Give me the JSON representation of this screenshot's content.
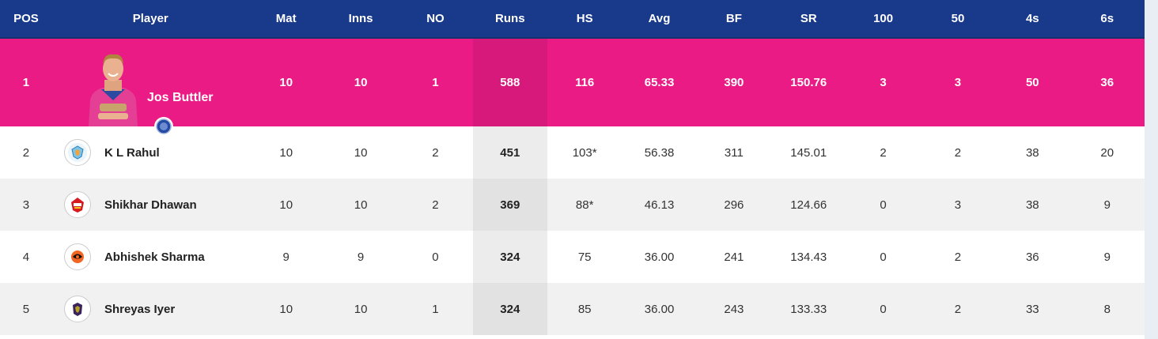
{
  "columns": {
    "pos": "POS",
    "player": "Player",
    "mat": "Mat",
    "inns": "Inns",
    "no": "NO",
    "runs": "Runs",
    "hs": "HS",
    "avg": "Avg",
    "bf": "BF",
    "sr": "SR",
    "hundreds": "100",
    "fifties": "50",
    "fours": "4s",
    "sixes": "6s"
  },
  "rows": [
    {
      "pos": "1",
      "player": "Jos Buttler",
      "mat": "10",
      "inns": "10",
      "no": "1",
      "runs": "588",
      "hs": "116",
      "avg": "65.33",
      "bf": "390",
      "sr": "150.76",
      "hundreds": "3",
      "fifties": "3",
      "fours": "50",
      "sixes": "36",
      "team_icon": "rajasthan-royals-logo-icon"
    },
    {
      "pos": "2",
      "player": "K L Rahul",
      "mat": "10",
      "inns": "10",
      "no": "2",
      "runs": "451",
      "hs": "103*",
      "avg": "56.38",
      "bf": "311",
      "sr": "145.01",
      "hundreds": "2",
      "fifties": "2",
      "fours": "38",
      "sixes": "20",
      "team_icon": "lucknow-super-giants-logo-icon"
    },
    {
      "pos": "3",
      "player": "Shikhar Dhawan",
      "mat": "10",
      "inns": "10",
      "no": "2",
      "runs": "369",
      "hs": "88*",
      "avg": "46.13",
      "bf": "296",
      "sr": "124.66",
      "hundreds": "0",
      "fifties": "3",
      "fours": "38",
      "sixes": "9",
      "team_icon": "punjab-kings-logo-icon"
    },
    {
      "pos": "4",
      "player": "Abhishek Sharma",
      "mat": "9",
      "inns": "9",
      "no": "0",
      "runs": "324",
      "hs": "75",
      "avg": "36.00",
      "bf": "241",
      "sr": "134.43",
      "hundreds": "0",
      "fifties": "2",
      "fours": "36",
      "sixes": "9",
      "team_icon": "sunrisers-hyderabad-logo-icon"
    },
    {
      "pos": "5",
      "player": "Shreyas Iyer",
      "mat": "10",
      "inns": "10",
      "no": "1",
      "runs": "324",
      "hs": "85",
      "avg": "36.00",
      "bf": "243",
      "sr": "133.33",
      "hundreds": "0",
      "fifties": "2",
      "fours": "33",
      "sixes": "8",
      "team_icon": "kolkata-knight-riders-logo-icon"
    }
  ],
  "colors": {
    "header_bg": "#19398a",
    "leader_bg": "#ea1b85",
    "alt_row_bg": "#f1f1f1",
    "runs_column_highlight": "#ececec"
  }
}
